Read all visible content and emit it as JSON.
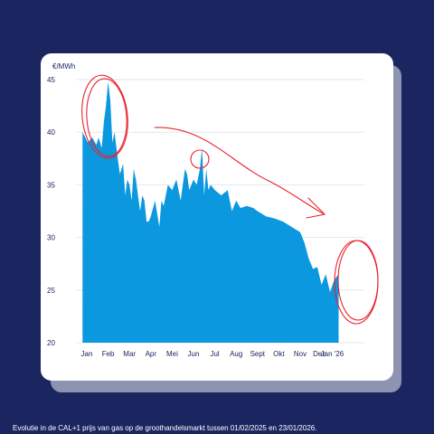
{
  "chart_data": {
    "type": "area",
    "ylabel": "€/MWh",
    "ylim": [
      20,
      45
    ],
    "yticks": [
      20,
      25,
      30,
      35,
      40,
      45
    ],
    "xlim": [
      0,
      11.8
    ],
    "x_tick_labels": [
      {
        "label": "Jan",
        "pos": 0
      },
      {
        "label": "Feb",
        "pos": 1
      },
      {
        "label": "Mar",
        "pos": 2
      },
      {
        "label": "Apr",
        "pos": 3
      },
      {
        "label": "Mei",
        "pos": 4
      },
      {
        "label": "Jun",
        "pos": 5
      },
      {
        "label": "Jul",
        "pos": 6
      },
      {
        "label": "Aug",
        "pos": 7
      },
      {
        "label": "Sept",
        "pos": 8
      },
      {
        "label": "Okt",
        "pos": 9
      },
      {
        "label": "Nov",
        "pos": 10
      },
      {
        "label": "Dec",
        "pos": 10.9
      },
      {
        "label": "Jan '26",
        "pos": 11.5
      }
    ],
    "grid": true,
    "fill_color": "#0b98df",
    "annotation_color": "#e8242e",
    "series": [
      {
        "x": [
          -0.2,
          0.05,
          0.25,
          0.45,
          0.55,
          0.7,
          0.8,
          0.9,
          1.0,
          1.1,
          1.2,
          1.3,
          1.45,
          1.55,
          1.7,
          1.8,
          1.9,
          2.0,
          2.1,
          2.2,
          2.3,
          2.4,
          2.5,
          2.6,
          2.7,
          2.8,
          2.9,
          3.0,
          3.2,
          3.4,
          3.5,
          3.6,
          3.8,
          4.0,
          4.2,
          4.4,
          4.6,
          4.7,
          4.8,
          5.0,
          5.15,
          5.3,
          5.4,
          5.5,
          5.6,
          5.7,
          5.8,
          6.0,
          6.3,
          6.6,
          6.8,
          7.0,
          7.2,
          7.5,
          7.8,
          8.0,
          8.4,
          8.8,
          9.2,
          9.6,
          10.0,
          10.2,
          10.4,
          10.6,
          10.8,
          11.0,
          11.2,
          11.4,
          11.6,
          11.8
        ],
        "values": [
          40.0,
          39.0,
          39.5,
          38.8,
          39.5,
          38.5,
          41.0,
          42.5,
          44.8,
          43.0,
          39.0,
          40.0,
          37.5,
          36.0,
          37.0,
          34.0,
          35.5,
          35.0,
          33.5,
          36.5,
          35.5,
          34.0,
          32.5,
          34.0,
          33.5,
          31.5,
          31.5,
          32.0,
          33.5,
          31.0,
          33.5,
          33.0,
          35.0,
          34.5,
          35.5,
          33.5,
          36.5,
          36.0,
          34.5,
          35.5,
          35.0,
          36.5,
          38.5,
          34.0,
          36.5,
          34.5,
          35.0,
          34.5,
          34.0,
          34.5,
          32.5,
          33.5,
          32.8,
          33.0,
          32.8,
          32.5,
          32.0,
          31.8,
          31.5,
          31.0,
          30.5,
          29.5,
          28.0,
          27.0,
          27.2,
          25.5,
          26.5,
          24.8,
          26.0,
          26.5
        ]
      }
    ]
  },
  "footer": {
    "caption": "Evolutie in de CAL+1 prijs van gas op de groothandelsmarkt tussen 01/02/2025 en 23/01/2026."
  }
}
